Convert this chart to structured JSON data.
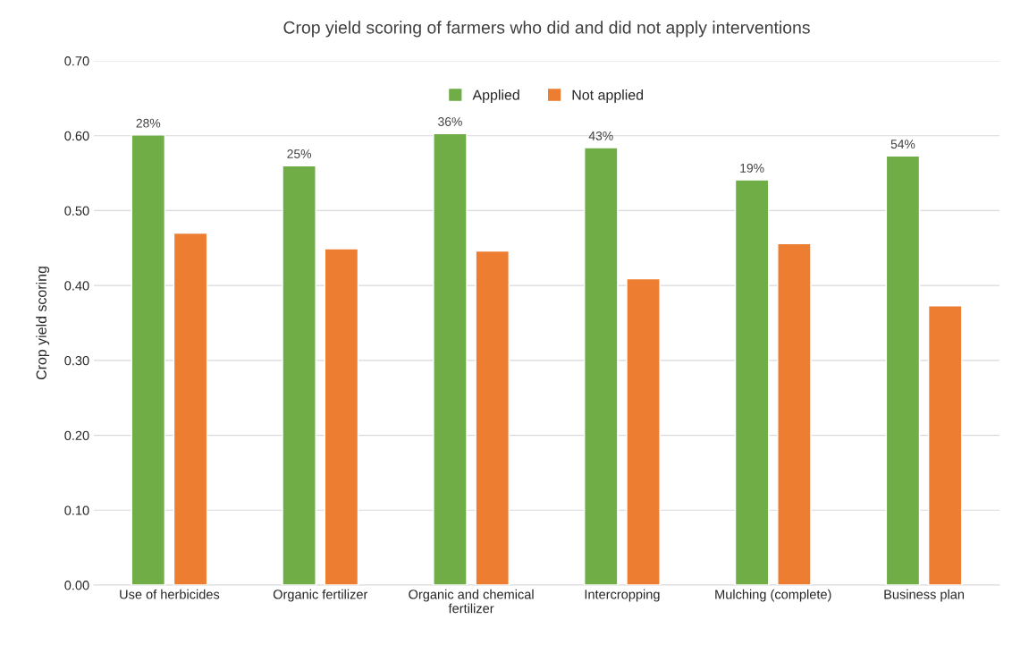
{
  "chart_data": {
    "type": "bar",
    "title": "Crop yield scoring of farmers who did and did not apply interventions",
    "ylabel": "Crop yield scoring",
    "categories": [
      "Use of herbicides",
      "Organic fertilizer",
      "Organic and chemical\nfertilizer",
      "Intercropping",
      "Mulching (complete)",
      "Business plan"
    ],
    "series": [
      {
        "name": "Applied",
        "color": "#70ad47",
        "values": [
          0.601,
          0.56,
          0.603,
          0.584,
          0.541,
          0.573
        ]
      },
      {
        "name": "Not applied",
        "color": "#ed7d31",
        "values": [
          0.47,
          0.449,
          0.446,
          0.409,
          0.456,
          0.373
        ]
      }
    ],
    "ylim": [
      0,
      0.7
    ],
    "yticks": [
      {
        "value": 0,
        "label": "0.00"
      },
      {
        "value": 0.1,
        "label": "0.10"
      },
      {
        "value": 0.2,
        "label": "0.20"
      },
      {
        "value": 0.3,
        "label": "0.30"
      },
      {
        "value": 0.4,
        "label": "0.40"
      },
      {
        "value": 0.5,
        "label": "0.50"
      },
      {
        "value": 0.6,
        "label": "0.60"
      },
      {
        "value": 0.7,
        "label": "0.70"
      }
    ],
    "annotations": [
      "28%",
      "25%",
      "36%",
      "43%",
      "19%",
      "54%"
    ],
    "grid": "y",
    "legend": "top"
  }
}
